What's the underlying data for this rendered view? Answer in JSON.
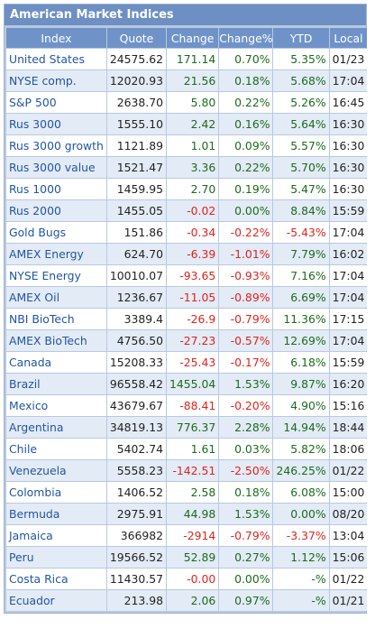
{
  "widget": {
    "title": "American Market Indices"
  },
  "table": {
    "headers": [
      "Index",
      "Quote",
      "Change",
      "Change%",
      "YTD",
      "Local"
    ],
    "rows": [
      {
        "name": "United States",
        "quote": "24575.62",
        "change": "171.14",
        "changePct": "0.70%",
        "ytd": "5.35%",
        "local": "01/23"
      },
      {
        "name": "NYSE comp.",
        "quote": "12020.93",
        "change": "21.56",
        "changePct": "0.18%",
        "ytd": "5.68%",
        "local": "17:04"
      },
      {
        "name": "S&P 500",
        "quote": "2638.70",
        "change": "5.80",
        "changePct": "0.22%",
        "ytd": "5.26%",
        "local": "16:45"
      },
      {
        "name": "Rus 3000",
        "quote": "1555.10",
        "change": "2.42",
        "changePct": "0.16%",
        "ytd": "5.64%",
        "local": "16:30"
      },
      {
        "name": "Rus 3000 growth",
        "quote": "1121.89",
        "change": "1.01",
        "changePct": "0.09%",
        "ytd": "5.57%",
        "local": "16:30"
      },
      {
        "name": "Rus 3000 value",
        "quote": "1521.47",
        "change": "3.36",
        "changePct": "0.22%",
        "ytd": "5.70%",
        "local": "16:30"
      },
      {
        "name": "Rus 1000",
        "quote": "1459.95",
        "change": "2.70",
        "changePct": "0.19%",
        "ytd": "5.47%",
        "local": "16:30"
      },
      {
        "name": "Rus 2000",
        "quote": "1455.05",
        "change": "-0.02",
        "changePct": "0.00%",
        "ytd": "8.84%",
        "local": "15:59"
      },
      {
        "name": "Gold Bugs",
        "quote": "151.86",
        "change": "-0.34",
        "changePct": "-0.22%",
        "ytd": "-5.43%",
        "local": "17:04"
      },
      {
        "name": "AMEX Energy",
        "quote": "624.70",
        "change": "-6.39",
        "changePct": "-1.01%",
        "ytd": "7.79%",
        "local": "16:02"
      },
      {
        "name": "NYSE Energy",
        "quote": "10010.07",
        "change": "-93.65",
        "changePct": "-0.93%",
        "ytd": "7.16%",
        "local": "17:04"
      },
      {
        "name": "AMEX Oil",
        "quote": "1236.67",
        "change": "-11.05",
        "changePct": "-0.89%",
        "ytd": "6.69%",
        "local": "17:04"
      },
      {
        "name": "NBI BioTech",
        "quote": "3389.4",
        "change": "-26.9",
        "changePct": "-0.79%",
        "ytd": "11.36%",
        "local": "17:15"
      },
      {
        "name": "AMEX BioTech",
        "quote": "4756.50",
        "change": "-27.23",
        "changePct": "-0.57%",
        "ytd": "12.69%",
        "local": "17:04"
      },
      {
        "name": "Canada",
        "quote": "15208.33",
        "change": "-25.43",
        "changePct": "-0.17%",
        "ytd": "6.18%",
        "local": "15:59"
      },
      {
        "name": "Brazil",
        "quote": "96558.42",
        "change": "1455.04",
        "changePct": "1.53%",
        "ytd": "9.87%",
        "local": "16:20"
      },
      {
        "name": "Mexico",
        "quote": "43679.67",
        "change": "-88.41",
        "changePct": "-0.20%",
        "ytd": "4.90%",
        "local": "15:16"
      },
      {
        "name": "Argentina",
        "quote": "34819.13",
        "change": "776.37",
        "changePct": "2.28%",
        "ytd": "14.94%",
        "local": "18:44"
      },
      {
        "name": "Chile",
        "quote": "5402.74",
        "change": "1.61",
        "changePct": "0.03%",
        "ytd": "5.82%",
        "local": "18:06"
      },
      {
        "name": "Venezuela",
        "quote": "5558.23",
        "change": "-142.51",
        "changePct": "-2.50%",
        "ytd": "246.25%",
        "local": "01/22"
      },
      {
        "name": "Colombia",
        "quote": "1406.52",
        "change": "2.58",
        "changePct": "0.18%",
        "ytd": "6.08%",
        "local": "15:00"
      },
      {
        "name": "Bermuda",
        "quote": "2975.91",
        "change": "44.98",
        "changePct": "1.53%",
        "ytd": "0.00%",
        "local": "08/20"
      },
      {
        "name": "Jamaica",
        "quote": "366982",
        "change": "-2914",
        "changePct": "-0.79%",
        "ytd": "-3.37%",
        "local": "13:04"
      },
      {
        "name": "Peru",
        "quote": "19566.52",
        "change": "52.89",
        "changePct": "0.27%",
        "ytd": "1.12%",
        "local": "15:06"
      },
      {
        "name": "Costa Rica",
        "quote": "11430.57",
        "change": "-0.00",
        "changePct": "0.00%",
        "ytd": "-%",
        "local": "01/22"
      },
      {
        "name": "Ecuador",
        "quote": "213.98",
        "change": "2.06",
        "changePct": "0.97%",
        "ytd": "-%",
        "local": "01/21"
      }
    ]
  },
  "colors": {
    "positive": "#1b6b1b",
    "negative": "#e0231c",
    "link": "#2255a4",
    "header": "#6f93c9"
  }
}
